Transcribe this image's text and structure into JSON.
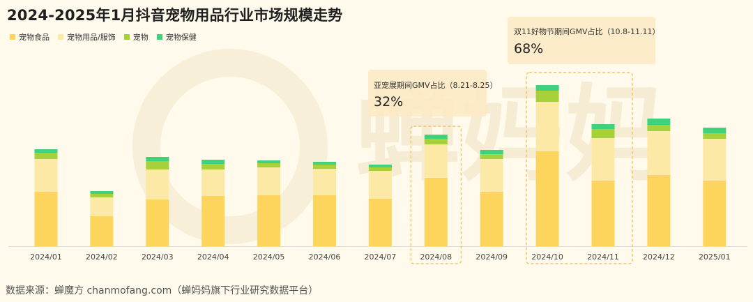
{
  "title": "2024-2025年1月抖音宠物用品行业市场规模走势",
  "footer": "数据来源：蝉魔方 chanmofang.com（蝉妈妈旗下行业研究数据平台）",
  "watermark": "蝉妈妈",
  "colors": {
    "pet_food": "#fdd45c",
    "pet_supplies": "#fde9a6",
    "pet": "#a6d13a",
    "pet_health": "#3fd17d",
    "highlight_border": "#f3b84a",
    "callout_bg": "#fde9c3",
    "background": "#fffaeb"
  },
  "legend": [
    "宠物食品",
    "宠物用品/服饰",
    "宠物",
    "宠物保健"
  ],
  "chart_data": {
    "type": "bar",
    "stacked": true,
    "title": "2024-2025年1月抖音宠物用品行业市场规模走势",
    "xlabel": "",
    "ylabel": "",
    "categories": [
      "2024/01",
      "2024/02",
      "2024/03",
      "2024/04",
      "2024/05",
      "2024/06",
      "2024/07",
      "2024/08",
      "2024/09",
      "2024/10",
      "2024/11",
      "2024/12",
      "2025/01"
    ],
    "series": [
      {
        "name": "宠物食品",
        "values": [
          78,
          43,
          67,
          72,
          73,
          73,
          68,
          98,
          78,
          136,
          94,
          102,
          94
        ]
      },
      {
        "name": "宠物用品/服饰",
        "values": [
          47,
          27,
          43,
          38,
          40,
          38,
          40,
          48,
          47,
          71,
          61,
          63,
          60
        ]
      },
      {
        "name": "宠物",
        "values": [
          9,
          5,
          12,
          8,
          6,
          6,
          5,
          8,
          7,
          16,
          13,
          9,
          8
        ]
      },
      {
        "name": "宠物保健",
        "values": [
          5,
          4,
          6,
          6,
          4,
          4,
          4,
          6,
          6,
          8,
          7,
          9,
          8
        ]
      }
    ],
    "grid": false,
    "legend_position": "top-left",
    "highlights": [
      {
        "category": "2024/08",
        "label": "亚宠展期间GMV占比（8.21-8.25）",
        "value": "32%"
      },
      {
        "categories": [
          "2024/10",
          "2024/11"
        ],
        "label": "双11好物节期间GMV占比（10.8-11.11）",
        "value": "68%"
      }
    ]
  }
}
